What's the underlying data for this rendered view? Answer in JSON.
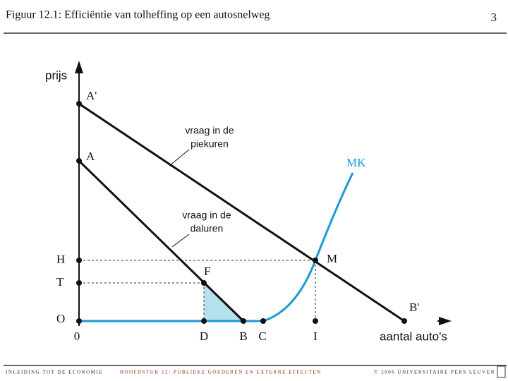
{
  "header": {
    "title": "Figuur 12.1: Efficiëntie van tolheffing op een autosnelweg",
    "page": "3"
  },
  "diagram": {
    "y_axis_label": "prijs",
    "x_axis_label": "aantal auto's",
    "price_points": [
      "A'",
      "A",
      "H",
      "T",
      "O"
    ],
    "origin": "0",
    "quantity_points": [
      "D",
      "B",
      "C",
      "I"
    ],
    "point_F": "F",
    "point_M": "M",
    "point_B_prime": "B'",
    "curve_MK": "MK",
    "peak_demand_label": [
      "vraag in de",
      "piekuren"
    ],
    "offpeak_demand_label": [
      "vraag in de",
      "daluren"
    ]
  },
  "footer": {
    "left": "INLEIDING TOT DE ECONOMIE",
    "center": "HOOFDSTUK 12: PUBLIEKE GOEDEREN EN EXTERNE EFFECTEN",
    "right": "© 2006 UNIVERSITAIRE PERS LEUVEN"
  }
}
